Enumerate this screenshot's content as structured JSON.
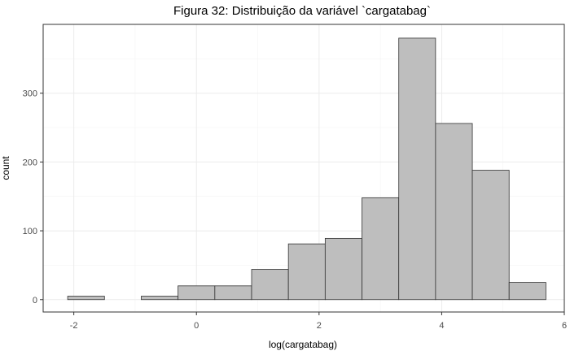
{
  "chart_data": {
    "type": "bar",
    "title": "Figura 32: Distribuição da variável `cargatabag`",
    "xlabel": "log(cargatabag)",
    "ylabel": "count",
    "xlim": [
      -2.5,
      6
    ],
    "ylim": [
      -18,
      400
    ],
    "x_ticks": [
      -2,
      0,
      2,
      4,
      6
    ],
    "y_ticks": [
      0,
      100,
      200,
      300
    ],
    "x_tick_labels": [
      "-2",
      "0",
      "2",
      "4",
      "6"
    ],
    "y_tick_labels": [
      "0",
      "100",
      "200",
      "300"
    ],
    "bins": [
      {
        "x0": -2.1,
        "x1": -1.5,
        "count": 5
      },
      {
        "x0": -1.5,
        "x1": -0.9,
        "count": 0
      },
      {
        "x0": -0.9,
        "x1": -0.3,
        "count": 5
      },
      {
        "x0": -0.3,
        "x1": 0.3,
        "count": 20
      },
      {
        "x0": 0.3,
        "x1": 0.9,
        "count": 20
      },
      {
        "x0": 0.9,
        "x1": 1.5,
        "count": 44
      },
      {
        "x0": 1.5,
        "x1": 2.1,
        "count": 81
      },
      {
        "x0": 2.1,
        "x1": 2.7,
        "count": 89
      },
      {
        "x0": 2.7,
        "x1": 3.3,
        "count": 148
      },
      {
        "x0": 3.3,
        "x1": 3.9,
        "count": 380
      },
      {
        "x0": 3.9,
        "x1": 4.5,
        "count": 256
      },
      {
        "x0": 4.5,
        "x1": 5.1,
        "count": 188
      },
      {
        "x0": 5.1,
        "x1": 5.7,
        "count": 25
      }
    ],
    "grid": true,
    "bar_fill": "#bebebe",
    "bar_stroke": "#333333"
  }
}
